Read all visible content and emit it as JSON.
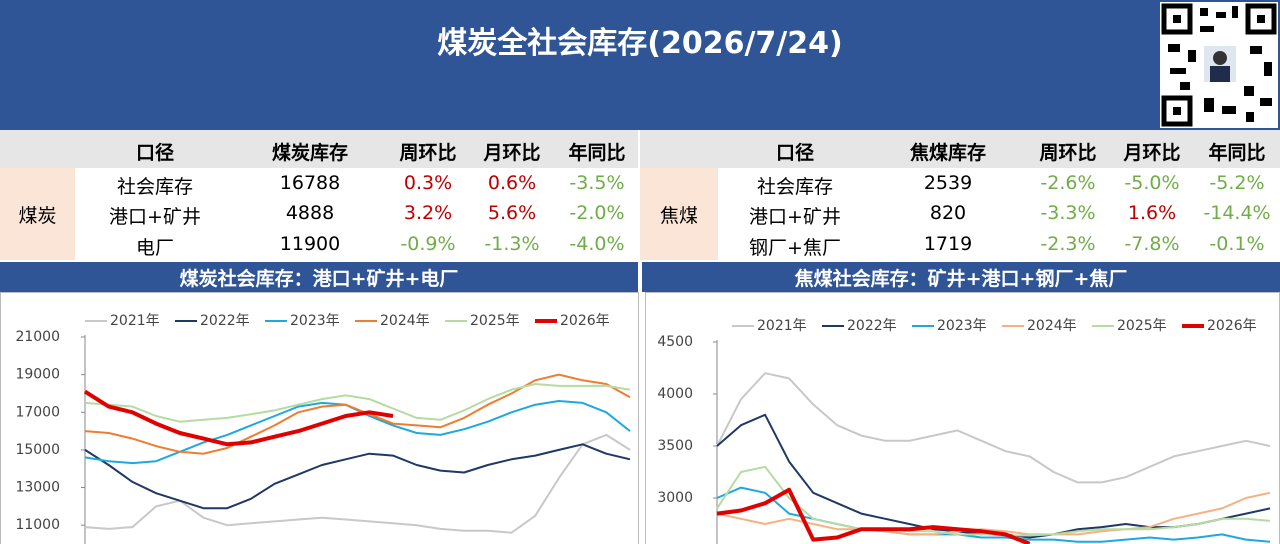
{
  "header": {
    "title": "煤炭全社会库存(2026/7/24)"
  },
  "tables": [
    {
      "columns": [
        "口径",
        "煤炭库存",
        "周环比",
        "月环比",
        "年同比"
      ],
      "group": "煤炭",
      "rows": [
        [
          "社会库存",
          16788,
          "0.3%",
          "0.6%",
          "-3.5%"
        ],
        [
          "港口+矿井",
          4888,
          "3.2%",
          "5.6%",
          "-2.0%"
        ],
        [
          "电厂",
          11900,
          "-0.9%",
          "-1.3%",
          "-4.0%"
        ]
      ]
    },
    {
      "columns": [
        "口径",
        "焦煤库存",
        "周环比",
        "月环比",
        "年同比"
      ],
      "group": "焦煤",
      "rows": [
        [
          "社会库存",
          2539,
          "-2.6%",
          "-5.0%",
          "-5.2%"
        ],
        [
          "港口+矿井",
          820,
          "-3.3%",
          "1.6%",
          "-14.4%"
        ],
        [
          "钢厂+焦厂",
          1719,
          "-2.3%",
          "-7.8%",
          "-0.1%"
        ]
      ]
    }
  ],
  "chart_data": [
    {
      "type": "line",
      "title": "煤炭社会库存：港口+矿井+电厂",
      "legend": "top",
      "categories": [
        null,
        null,
        null,
        null,
        null,
        null,
        null,
        null,
        null,
        null,
        null,
        null,
        null,
        null,
        null,
        null,
        null,
        null,
        null,
        null,
        null,
        null,
        null,
        null
      ],
      "ylim": [
        10000,
        21000
      ],
      "yticks": [
        11000,
        13000,
        15000,
        17000,
        19000,
        21000
      ],
      "series": [
        {
          "name": "2021年",
          "color": "#c8c8c8",
          "values": [
            10900,
            10800,
            10900,
            12000,
            12300,
            11400,
            11000,
            11100,
            11200,
            11300,
            11400,
            11300,
            11200,
            11100,
            11000,
            10800,
            10700,
            10700,
            10600,
            11500,
            13500,
            15300,
            15800,
            15000
          ]
        },
        {
          "name": "2022年",
          "color": "#1f3864",
          "values": [
            15000,
            14200,
            13300,
            12700,
            12300,
            11900,
            11900,
            12400,
            13200,
            13700,
            14200,
            14500,
            14800,
            14700,
            14200,
            13900,
            13800,
            14200,
            14500,
            14700,
            15000,
            15300,
            14800,
            14500
          ]
        },
        {
          "name": "2023年",
          "color": "#1fa8e0",
          "values": [
            14600,
            14400,
            14300,
            14400,
            14900,
            15400,
            15800,
            16300,
            16800,
            17300,
            17500,
            17400,
            16800,
            16300,
            15900,
            15800,
            16100,
            16500,
            17000,
            17400,
            17600,
            17500,
            17000,
            16000
          ]
        },
        {
          "name": "2024年",
          "color": "#ed7d31",
          "values": [
            16000,
            15900,
            15600,
            15200,
            14900,
            14800,
            15100,
            15700,
            16300,
            17000,
            17300,
            17400,
            16900,
            16400,
            16300,
            16200,
            16700,
            17400,
            18000,
            18700,
            19000,
            18700,
            18500,
            17800
          ]
        },
        {
          "name": "2025年",
          "color": "#b4dca0",
          "values": [
            17500,
            17400,
            17300,
            16800,
            16500,
            16600,
            16700,
            16900,
            17100,
            17400,
            17700,
            17900,
            17700,
            17200,
            16700,
            16600,
            17100,
            17700,
            18200,
            18500,
            18400,
            18400,
            18400,
            18200
          ]
        },
        {
          "name": "2026年",
          "color": "#e00000",
          "values": [
            18100,
            17300,
            17000,
            16400,
            15900,
            15600,
            15300,
            15400,
            15700,
            16000,
            16400,
            16800,
            17000,
            16800,
            null,
            null,
            null,
            null,
            null,
            null,
            null,
            null,
            null,
            null
          ]
        }
      ]
    },
    {
      "type": "line",
      "title": "焦煤社会库存：矿井+港口+钢厂+焦厂",
      "legend": "top",
      "categories": [
        null,
        null,
        null,
        null,
        null,
        null,
        null,
        null,
        null,
        null,
        null,
        null,
        null,
        null,
        null,
        null,
        null,
        null,
        null,
        null,
        null,
        null,
        null,
        null
      ],
      "ylim": [
        2500,
        4500
      ],
      "yticks": [
        3000,
        3500,
        4000,
        4500
      ],
      "series": [
        {
          "name": "2021年",
          "color": "#c8c8c8",
          "values": [
            3500,
            3950,
            4200,
            4150,
            3900,
            3700,
            3600,
            3550,
            3550,
            3600,
            3650,
            3550,
            3450,
            3400,
            3250,
            3150,
            3150,
            3200,
            3300,
            3400,
            3450,
            3500,
            3550,
            3500
          ]
        },
        {
          "name": "2022年",
          "color": "#1f3864",
          "values": [
            3500,
            3700,
            3800,
            3350,
            3050,
            2950,
            2850,
            2800,
            2750,
            2700,
            2680,
            2650,
            2650,
            2620,
            2650,
            2700,
            2720,
            2750,
            2720,
            2720,
            2750,
            2800,
            2850,
            2900
          ]
        },
        {
          "name": "2023年",
          "color": "#1fa8e0",
          "values": [
            3000,
            3100,
            3050,
            2850,
            2800,
            2750,
            2700,
            2680,
            2650,
            2650,
            2650,
            2620,
            2620,
            2600,
            2600,
            2580,
            2580,
            2600,
            2620,
            2600,
            2620,
            2650,
            2600,
            2580
          ]
        },
        {
          "name": "2024年",
          "color": "#f4b183",
          "values": [
            2850,
            2800,
            2750,
            2800,
            2750,
            2700,
            2700,
            2680,
            2650,
            2650,
            2680,
            2700,
            2680,
            2650,
            2650,
            2650,
            2680,
            2700,
            2720,
            2800,
            2850,
            2900,
            3000,
            3050
          ]
        },
        {
          "name": "2025年",
          "color": "#b4dca0",
          "values": [
            2900,
            3250,
            3300,
            3000,
            2800,
            2750,
            2700,
            2700,
            2680,
            2680,
            2650,
            2650,
            2640,
            2640,
            2650,
            2680,
            2700,
            2700,
            2700,
            2720,
            2750,
            2800,
            2800,
            2780
          ]
        },
        {
          "name": "2026年",
          "color": "#e00000",
          "values": [
            2850,
            2880,
            2950,
            3080,
            2600,
            2620,
            2700,
            2700,
            2700,
            2720,
            2700,
            2680,
            2650,
            2560,
            null,
            null,
            null,
            null,
            null,
            null,
            null,
            null,
            null,
            null
          ]
        }
      ]
    }
  ]
}
